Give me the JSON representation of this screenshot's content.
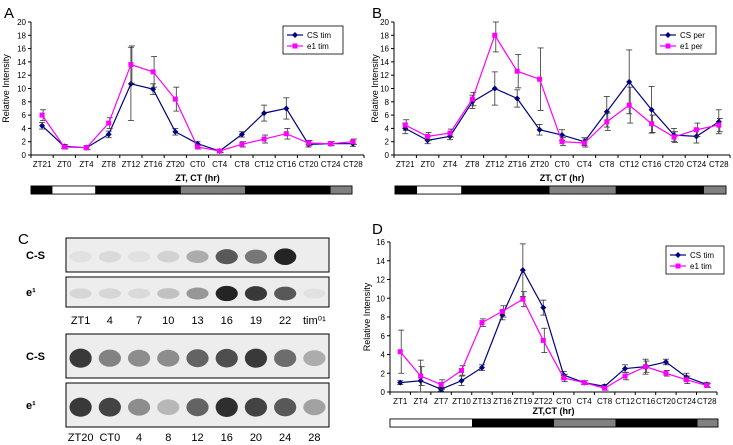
{
  "chart_data": [
    {
      "panel": "A",
      "type": "line",
      "ylabel": "Relative Intensity",
      "xlabel": "ZT, CT (hr)",
      "ylim": [
        0,
        20
      ],
      "yticks": [
        0,
        2,
        4,
        6,
        8,
        10,
        12,
        14,
        16,
        18,
        20
      ],
      "categories": [
        "ZT21",
        "ZT0",
        "ZT4",
        "ZT8",
        "ZT12",
        "ZT16",
        "ZT20",
        "CT0",
        "CT4",
        "CT8",
        "CT12",
        "CT16",
        "CT20",
        "CT24",
        "CT28"
      ],
      "series": [
        {
          "name": "CS tim",
          "color": "#000080",
          "marker": "diamond",
          "values": [
            4.4,
            1.3,
            1.1,
            3.1,
            10.7,
            9.9,
            3.5,
            1.7,
            0.6,
            3.1,
            6.3,
            7.0,
            1.6,
            1.7,
            1.7
          ],
          "errors": [
            0.5,
            0.3,
            0.3,
            0.5,
            5.5,
            0.8,
            0.5,
            0.3,
            0.2,
            0.4,
            1.2,
            1.6,
            0.4,
            0.3,
            0.4
          ]
        },
        {
          "name": "e1 tim",
          "color": "#ff00ff",
          "marker": "square",
          "values": [
            6.0,
            1.2,
            1.1,
            4.8,
            13.6,
            12.5,
            8.4,
            1.2,
            0.6,
            1.6,
            2.4,
            3.2,
            1.8,
            1.7,
            2.0
          ],
          "errors": [
            0.8,
            0.3,
            0.3,
            0.8,
            2.8,
            2.3,
            1.8,
            0.3,
            0.2,
            0.4,
            0.6,
            0.8,
            0.4,
            0.3,
            0.4
          ]
        }
      ],
      "light_bar": [
        "black",
        "white",
        "white",
        "black",
        "black",
        "black",
        "black",
        "gray",
        "gray",
        "gray",
        "black",
        "black",
        "black",
        "black",
        "gray"
      ]
    },
    {
      "panel": "B",
      "type": "line",
      "ylabel": "Relative Intensity",
      "xlabel": "ZT, CT (hr)",
      "ylim": [
        0,
        20
      ],
      "yticks": [
        0,
        2,
        4,
        6,
        8,
        10,
        12,
        14,
        16,
        18,
        20
      ],
      "categories": [
        "ZT21",
        "ZT0",
        "ZT4",
        "ZT8",
        "ZT12",
        "ZT16",
        "ZT20",
        "CT0",
        "CT4",
        "CT8",
        "CT12",
        "CT16",
        "CT20",
        "CT24",
        "CT28"
      ],
      "series": [
        {
          "name": "CS per",
          "color": "#000080",
          "marker": "diamond",
          "values": [
            4.0,
            2.2,
            2.8,
            8.0,
            10.0,
            8.5,
            3.8,
            3.0,
            2.0,
            6.5,
            11.0,
            6.8,
            3.0,
            2.8,
            5.0
          ],
          "errors": [
            0.8,
            0.5,
            0.5,
            1.0,
            2.5,
            1.3,
            0.8,
            0.8,
            0.6,
            2.3,
            4.8,
            3.5,
            1.0,
            1.0,
            1.8
          ]
        },
        {
          "name": "e1 per",
          "color": "#ff00ff",
          "marker": "square",
          "values": [
            4.5,
            2.8,
            3.3,
            8.4,
            18.0,
            12.6,
            11.4,
            2.0,
            1.8,
            5.0,
            7.5,
            4.7,
            2.7,
            3.8,
            4.5
          ],
          "errors": [
            0.8,
            0.6,
            0.6,
            1.0,
            2.5,
            2.5,
            4.7,
            0.6,
            0.6,
            1.3,
            2.7,
            1.3,
            0.8,
            1.0,
            1.0
          ]
        }
      ],
      "light_bar": [
        "black",
        "white",
        "white",
        "black",
        "black",
        "black",
        "black",
        "gray",
        "gray",
        "gray",
        "black",
        "black",
        "black",
        "black",
        "gray"
      ]
    },
    {
      "panel": "D",
      "type": "line",
      "ylabel": "Relative Intensity",
      "xlabel": "ZT,CT (hr)",
      "ylim": [
        0,
        16
      ],
      "yticks": [
        0,
        2,
        4,
        6,
        8,
        10,
        12,
        14,
        16
      ],
      "categories": [
        "ZT1",
        "ZT4",
        "ZT7",
        "ZT10",
        "ZT13",
        "ZT16",
        "ZT19",
        "ZT22",
        "CT0",
        "CT4",
        "CT8",
        "CT12",
        "CT16",
        "CT20",
        "CT24",
        "CT28"
      ],
      "series": [
        {
          "name": "CS tim",
          "color": "#000080",
          "marker": "diamond",
          "values": [
            1.0,
            1.2,
            0.3,
            1.2,
            2.6,
            8.2,
            13.0,
            9.0,
            1.8,
            1.0,
            0.6,
            2.5,
            2.7,
            3.2,
            1.6,
            0.8
          ],
          "errors": [
            0.2,
            2.2,
            0.2,
            0.5,
            0.3,
            0.5,
            2.8,
            0.8,
            0.4,
            0.2,
            0.2,
            0.4,
            0.8,
            0.3,
            0.4,
            0.2
          ]
        },
        {
          "name": "e1 tim",
          "color": "#ff00ff",
          "marker": "square",
          "values": [
            4.3,
            1.7,
            0.8,
            2.3,
            7.4,
            8.6,
            9.9,
            5.5,
            1.5,
            1.0,
            0.4,
            1.7,
            2.7,
            2.0,
            1.3,
            0.7
          ],
          "errors": [
            2.3,
            1.0,
            0.5,
            0.5,
            0.4,
            0.6,
            0.8,
            1.3,
            0.4,
            0.2,
            0.2,
            0.4,
            0.6,
            0.3,
            0.4,
            0.2
          ]
        }
      ],
      "light_bar": [
        "white",
        "white",
        "white",
        "white",
        "black",
        "black",
        "black",
        "black",
        "gray",
        "gray",
        "gray",
        "black",
        "black",
        "black",
        "black",
        "gray"
      ]
    }
  ],
  "panels": {
    "a": {
      "letter": "A"
    },
    "b": {
      "letter": "B"
    },
    "c": {
      "letter": "C"
    },
    "d": {
      "letter": "D"
    }
  },
  "blot_top": {
    "rows": [
      "C-S",
      "e¹"
    ],
    "lanes": [
      "ZT1",
      "4",
      "7",
      "10",
      "13",
      "16",
      "19",
      "22",
      "tim⁰¹"
    ],
    "intensity": {
      "C-S": [
        0.05,
        0.08,
        0.05,
        0.12,
        0.3,
        0.7,
        0.55,
        0.95,
        0.0
      ],
      "e¹": [
        0.1,
        0.1,
        0.08,
        0.2,
        0.4,
        0.95,
        0.85,
        0.7,
        0.05
      ]
    }
  },
  "blot_bottom": {
    "rows": [
      "C-S",
      "e¹"
    ],
    "lanes": [
      "ZT20",
      "CT0",
      "4",
      "8",
      "12",
      "16",
      "20",
      "24",
      "28"
    ],
    "intensity": {
      "C-S": [
        0.85,
        0.5,
        0.45,
        0.45,
        0.65,
        0.75,
        0.85,
        0.6,
        0.3
      ],
      "e¹": [
        0.85,
        0.8,
        0.45,
        0.25,
        0.65,
        0.9,
        0.8,
        0.7,
        0.35
      ]
    }
  }
}
